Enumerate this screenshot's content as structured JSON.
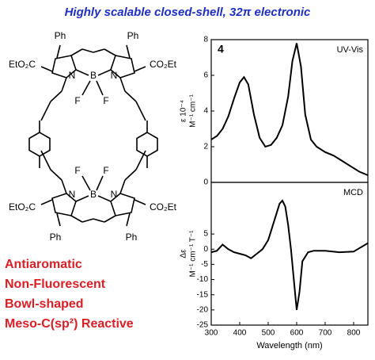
{
  "title": "Highly scalable closed-shell, 32π electronic",
  "structure_labels": [
    "Ph",
    "Ph",
    "EtO₂C",
    "CO₂Et",
    "N",
    "B",
    "N",
    "F",
    "F",
    "F",
    "F",
    "N",
    "B",
    "N",
    "EtO₂C",
    "CO₂Et",
    "Ph",
    "Ph"
  ],
  "features": [
    "Antiaromatic",
    "Non-Fluorescent",
    "Bowl-shaped",
    "Meso-C(sp²) Reactive"
  ],
  "chart_data": [
    {
      "type": "line",
      "annotations": [
        "4",
        "UV-Vis"
      ],
      "ylabel": [
        "ε 10⁻⁴",
        "M⁻¹ cm⁻¹"
      ],
      "x": [
        300,
        320,
        340,
        360,
        380,
        400,
        415,
        430,
        450,
        470,
        490,
        510,
        530,
        550,
        570,
        585,
        600,
        615,
        630,
        650,
        670,
        700,
        730,
        760,
        790,
        820,
        850
      ],
      "values": [
        2.4,
        2.6,
        3.0,
        3.7,
        4.7,
        5.6,
        5.9,
        5.5,
        3.8,
        2.5,
        2.0,
        2.1,
        2.5,
        3.2,
        4.8,
        6.8,
        7.8,
        6.5,
        3.8,
        2.4,
        2.0,
        1.7,
        1.5,
        1.2,
        0.9,
        0.6,
        0.4
      ],
      "color": "#000000",
      "xlim": [
        300,
        850
      ],
      "ylim": [
        0,
        8
      ],
      "yticks": [
        0,
        2,
        4,
        6,
        8
      ]
    },
    {
      "type": "line",
      "annotations": [
        "MCD"
      ],
      "ylabel": [
        "Δε",
        "M⁻¹ cm⁻¹ T⁻¹"
      ],
      "xlabel": "Wavelength (nm)",
      "x": [
        300,
        320,
        340,
        360,
        380,
        400,
        420,
        440,
        460,
        480,
        500,
        520,
        540,
        550,
        560,
        570,
        580,
        590,
        600,
        610,
        620,
        640,
        660,
        700,
        750,
        800,
        850
      ],
      "values": [
        -1,
        -0.5,
        1.5,
        0,
        -1,
        -1.5,
        -2,
        -3,
        -1.5,
        0,
        3,
        9,
        15,
        16,
        14,
        8,
        0,
        -10,
        -20,
        -14,
        -4,
        -1,
        -0.5,
        -0.5,
        -1,
        -0.8,
        2
      ],
      "color": "#000000",
      "xlim": [
        300,
        850
      ],
      "ylim": [
        -25,
        22
      ],
      "yticks": [
        5,
        0,
        -5,
        -10,
        -15,
        -20,
        -25
      ],
      "xticks": [
        300,
        400,
        500,
        600,
        700,
        800
      ]
    }
  ]
}
